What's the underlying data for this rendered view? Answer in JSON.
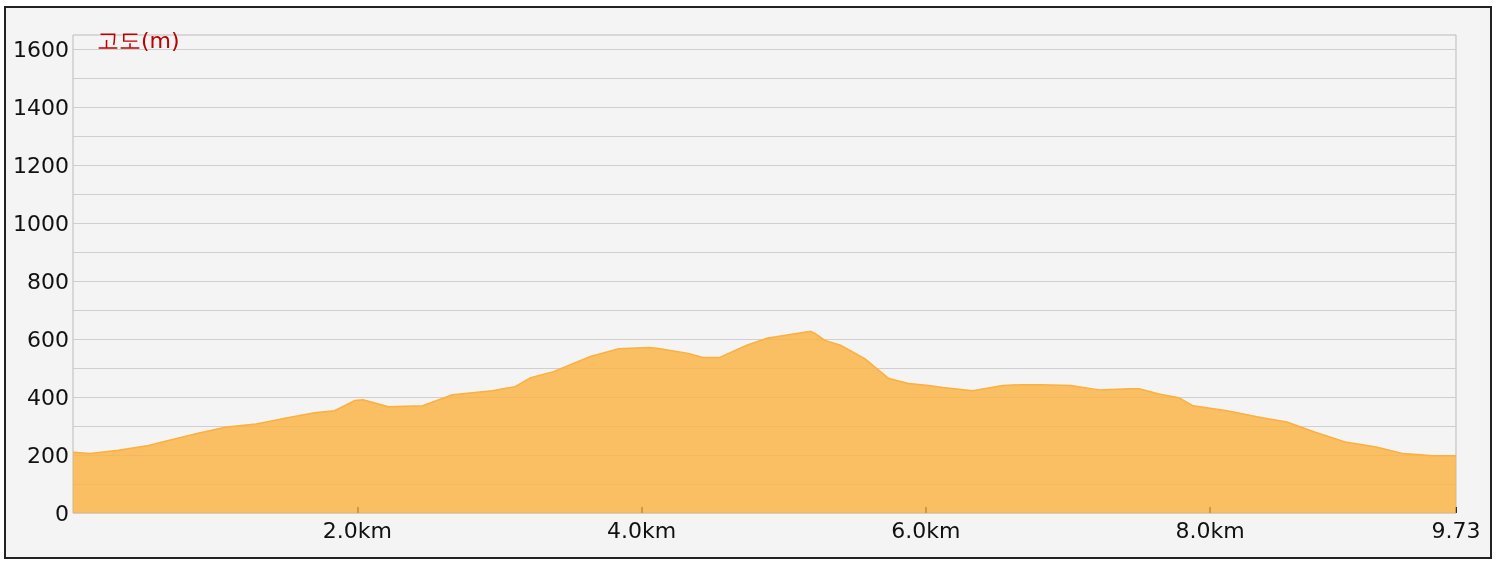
{
  "chart_data": {
    "type": "area",
    "ylabel": "고도(m)",
    "x": [
      0,
      0.12,
      0.32,
      0.53,
      0.7,
      0.88,
      1.08,
      1.29,
      1.5,
      1.7,
      1.84,
      1.98,
      2.04,
      2.22,
      2.46,
      2.67,
      2.95,
      3.11,
      3.22,
      3.38,
      3.64,
      3.84,
      4.05,
      4.12,
      4.33,
      4.43,
      4.55,
      4.74,
      4.88,
      5.09,
      5.19,
      5.22,
      5.29,
      5.4,
      5.57,
      5.74,
      5.88,
      6.02,
      6.12,
      6.33,
      6.54,
      6.67,
      6.81,
      7.02,
      7.22,
      7.43,
      7.5,
      7.64,
      7.78,
      7.88,
      8.12,
      8.33,
      8.54,
      8.74,
      8.95,
      9.16,
      9.36,
      9.57,
      9.73
    ],
    "series": [
      {
        "color": "#fbb03f",
        "values": [
          210,
          205,
          217,
          233,
          254,
          275,
          297,
          307,
          328,
          346,
          353,
          388,
          391,
          367,
          370,
          408,
          422,
          436,
          467,
          488,
          540,
          567,
          571,
          568,
          551,
          537,
          537,
          579,
          603,
          620,
          627,
          620,
          596,
          579,
          533,
          464,
          447,
          440,
          433,
          422,
          440,
          443,
          443,
          440,
          425,
          429,
          429,
          411,
          398,
          370,
          353,
          332,
          314,
          279,
          245,
          229,
          205,
          198,
          198
        ]
      }
    ],
    "xlim": [
      0,
      9.73
    ],
    "xticks": [
      {
        "value": 2,
        "label": "2.0km"
      },
      {
        "value": 4,
        "label": "4.0km"
      },
      {
        "value": 6,
        "label": "6.0km"
      },
      {
        "value": 8,
        "label": "8.0km"
      },
      {
        "value": 9.73,
        "label": "9.73"
      }
    ],
    "ylim": [
      0,
      1650
    ],
    "yticks": [
      0,
      {
        "value": 100,
        "label": null
      },
      200,
      {
        "value": 300,
        "label": null
      },
      400,
      {
        "value": 500,
        "label": null
      },
      600,
      {
        "value": 700,
        "label": null
      },
      800,
      {
        "value": 900,
        "label": null
      },
      1000,
      {
        "value": 1100,
        "label": null
      },
      1200,
      {
        "value": 1300,
        "label": null
      },
      1400,
      {
        "value": 1500,
        "label": null
      },
      1600
    ],
    "grid": "y",
    "marker": "none",
    "line_style": "solid"
  }
}
